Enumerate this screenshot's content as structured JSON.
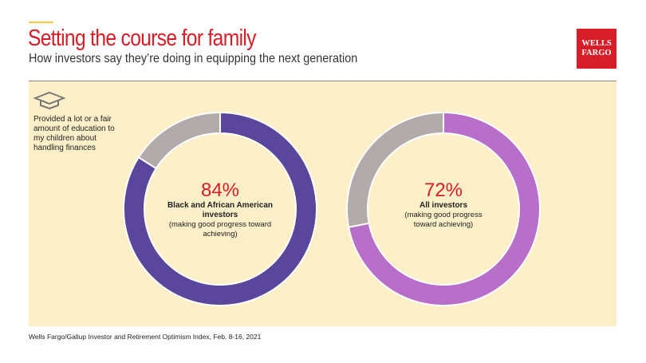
{
  "header": {
    "title": "Setting the course for family",
    "subtitle": "How investors say they’re doing in equipping the next generation"
  },
  "logo": {
    "line1": "WELLS",
    "line2": "FARGO"
  },
  "description": "Provided a lot or a fair amount of education to my children about handling finances",
  "footer": {
    "source": "Wells Fargo/Gallup Investor and Retirement Optimism Index, Feb. 8-16, 2021"
  },
  "colors": {
    "remainder": "#b3abab",
    "series1": "#5a469a",
    "series2": "#b86fc9",
    "accent": "#d71e28",
    "panel": "#fdefc8"
  },
  "chart_data": [
    {
      "type": "pie",
      "label": "84%",
      "value": 84,
      "group": "Black and African American investors",
      "note": "(making good progress toward achieving)",
      "color": "#5a469a"
    },
    {
      "type": "pie",
      "label": "72%",
      "value": 72,
      "group": "All investors",
      "note": "(making good progress toward achieving)",
      "color": "#b86fc9"
    }
  ]
}
